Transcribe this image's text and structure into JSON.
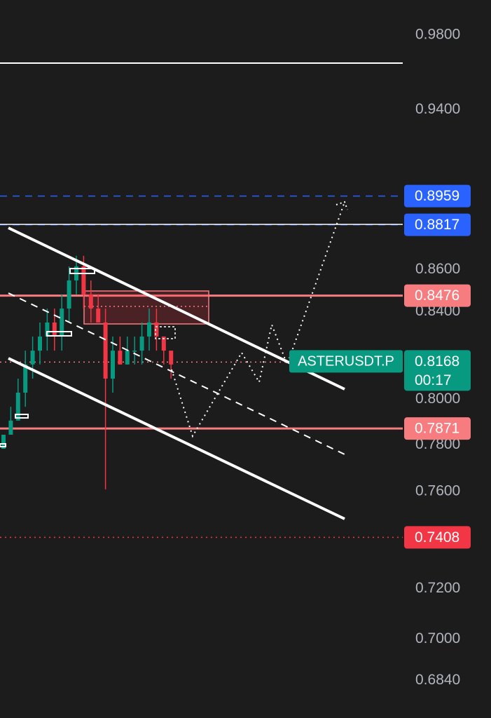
{
  "chart_data": {
    "type": "candlestick",
    "symbol": "ASTERUSDT.P",
    "countdown": "00:17",
    "log_scale": true,
    "ylim": [
      0.6699,
      0.9993
    ],
    "yticks": [
      {
        "value": 0.98,
        "label": "0.9800"
      },
      {
        "value": 0.94,
        "label": "0.9400"
      },
      {
        "value": 0.86,
        "label": "0.8600"
      },
      {
        "value": 0.84,
        "label": "0.8400"
      },
      {
        "value": 0.8,
        "label": "0.8000"
      },
      {
        "value": 0.78,
        "label": "0.7800"
      },
      {
        "value": 0.76,
        "label": "0.7600"
      },
      {
        "value": 0.72,
        "label": "0.7200"
      },
      {
        "value": 0.7,
        "label": "0.7000"
      },
      {
        "value": 0.684,
        "label": "0.6840"
      }
    ],
    "up_color": "#089981",
    "down_color": "#f23645",
    "levels": [
      {
        "value": 0.8959,
        "color": "#2962ff",
        "style": "dashed"
      },
      {
        "value": 0.8817,
        "color": "#2962ff",
        "style": "dashed"
      },
      {
        "value": 0.8476,
        "color": "#f77c80",
        "style": "solid"
      },
      {
        "value": 0.8168,
        "color": "#089981",
        "style": "dotted"
      },
      {
        "value": 0.7871,
        "color": "#f77c80",
        "style": "solid"
      },
      {
        "value": 0.7408,
        "color": "#f23645",
        "style": "dotted"
      }
    ],
    "candles": {
      "open": [
        0.7783,
        0.7844,
        0.7906,
        0.803,
        0.8157,
        0.822,
        0.8285,
        0.835,
        0.8285,
        0.8415,
        0.8548,
        0.8615,
        0.8482,
        0.8415,
        0.835,
        0.8093,
        0.822,
        0.8157,
        0.822,
        0.822,
        0.8285,
        0.835,
        0.8285,
        0.822
      ],
      "high": [
        0.7844,
        0.7967,
        0.8093,
        0.822,
        0.8285,
        0.835,
        0.8415,
        0.8415,
        0.8482,
        0.8615,
        0.8666,
        0.8666,
        0.8548,
        0.8482,
        0.8415,
        0.8285,
        0.8285,
        0.8285,
        0.8285,
        0.835,
        0.8415,
        0.8415,
        0.8285,
        0.822
      ],
      "low": [
        0.7783,
        0.7844,
        0.7906,
        0.7967,
        0.8093,
        0.8157,
        0.822,
        0.822,
        0.822,
        0.835,
        0.8482,
        0.8415,
        0.835,
        0.835,
        0.7609,
        0.803,
        0.8157,
        0.8157,
        0.8157,
        0.8157,
        0.822,
        0.822,
        0.8157,
        0.8093
      ],
      "close": [
        0.7844,
        0.7906,
        0.803,
        0.8157,
        0.822,
        0.8285,
        0.835,
        0.8285,
        0.8415,
        0.8548,
        0.8615,
        0.8482,
        0.8415,
        0.835,
        0.8093,
        0.822,
        0.8157,
        0.822,
        0.822,
        0.8285,
        0.835,
        0.8285,
        0.822,
        0.8157
      ]
    }
  }
}
